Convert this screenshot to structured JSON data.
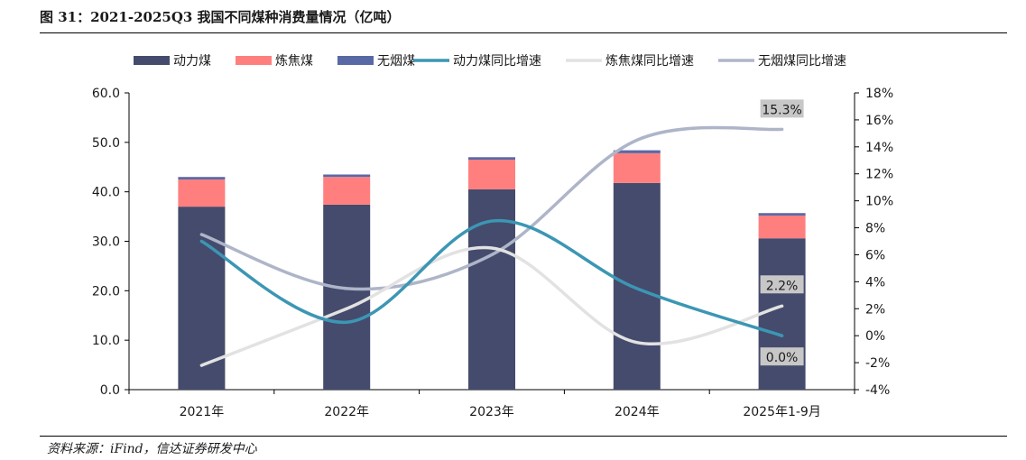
{
  "title": "图 31：2021-2025Q3 我国不同煤种消费量情况（亿吨）",
  "source": "资料来源：iFind，信达证券研发中心",
  "colors": {
    "power_coal": "#454B6C",
    "coking_coal": "#FF7F7F",
    "anthracite": "#5969A6",
    "power_yoy": "#3C96B4",
    "coking_yoy": "#E2E2E2",
    "anthracite_yoy": "#AEB5C9",
    "annotation_bg": "#C7C7C7"
  },
  "chart_data": {
    "type": "bar",
    "categories": [
      "2021年",
      "2022年",
      "2023年",
      "2024年",
      "2025年1-9月"
    ],
    "left_axis": {
      "min": 0,
      "max": 60,
      "ticks": [
        "0.0",
        "10.0",
        "20.0",
        "30.0",
        "40.0",
        "50.0",
        "60.0"
      ]
    },
    "right_axis": {
      "min": -4,
      "max": 18,
      "ticks": [
        "-4%",
        "-2%",
        "0%",
        "2%",
        "4%",
        "6%",
        "8%",
        "10%",
        "12%",
        "14%",
        "16%",
        "18%"
      ]
    },
    "bar_series": [
      {
        "name": "动力煤",
        "values": [
          37.0,
          37.4,
          40.5,
          41.8,
          30.6
        ]
      },
      {
        "name": "炼焦煤",
        "values": [
          5.5,
          5.6,
          6.0,
          6.0,
          4.6
        ]
      },
      {
        "name": "无烟煤",
        "values": [
          0.5,
          0.5,
          0.5,
          0.6,
          0.5
        ]
      }
    ],
    "line_series": [
      {
        "name": "动力煤同比增速",
        "values": [
          7.0,
          1.0,
          8.5,
          3.5,
          0.0
        ]
      },
      {
        "name": "炼焦煤同比增速",
        "values": [
          -2.2,
          2.0,
          6.5,
          -0.5,
          2.2
        ]
      },
      {
        "name": "无烟煤同比增速",
        "values": [
          7.5,
          3.5,
          6.0,
          14.5,
          15.3
        ]
      }
    ],
    "annotations": [
      "15.3%",
      "2.2%",
      "0.0%"
    ],
    "grid": false,
    "legend_position": "top"
  }
}
